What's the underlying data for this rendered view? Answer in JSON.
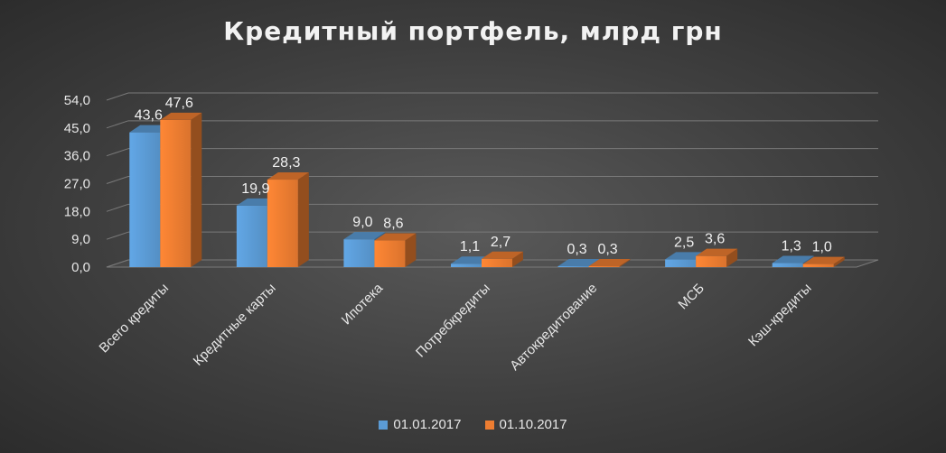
{
  "chart_data": {
    "type": "bar",
    "title": "Кредитный портфель, млрд грн",
    "categories": [
      "Всего кредиты",
      "Кредитные карты",
      "Ипотека",
      "Потребкредиты",
      "Автокредитование",
      "МСБ",
      "Кэш-кредиты"
    ],
    "series": [
      {
        "name": "01.01.2017",
        "values": [
          43.6,
          19.9,
          9.0,
          1.1,
          0.3,
          2.5,
          1.3
        ],
        "labels": [
          "43,6",
          "19,9",
          "9,0",
          "1,1",
          "0,3",
          "2,5",
          "1,3"
        ],
        "color": "#5b9bd5"
      },
      {
        "name": "01.10.2017",
        "values": [
          47.6,
          28.3,
          8.6,
          2.7,
          0.3,
          3.6,
          1.0
        ],
        "labels": [
          "47,6",
          "28,3",
          "8,6",
          "2,7",
          "0,3",
          "3,6",
          "1,0"
        ],
        "color": "#ed7d31"
      }
    ],
    "y_ticks": [
      "0,0",
      "9,0",
      "18,0",
      "27,0",
      "36,0",
      "45,0",
      "54,0"
    ],
    "y_tick_values": [
      0,
      9,
      18,
      27,
      36,
      45,
      54
    ],
    "ylim": [
      0,
      54
    ],
    "grid": true,
    "legend": "bottom"
  }
}
